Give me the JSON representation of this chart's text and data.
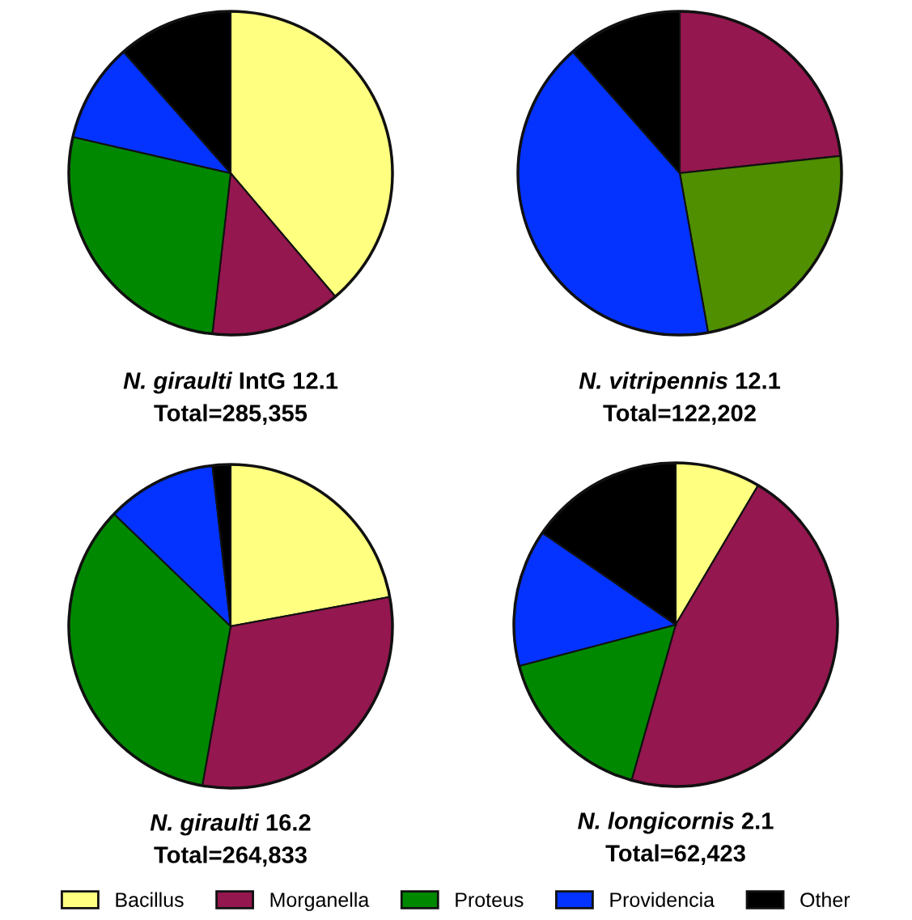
{
  "chart_data": [
    {
      "type": "pie",
      "title": "N. giraulti IntG 12.1",
      "subtitle": "Total=285,355",
      "categories": [
        "Bacillus",
        "Morganella",
        "Proteus",
        "Providencia",
        "Other"
      ],
      "values": [
        38.8,
        13.0,
        26.8,
        9.9,
        11.5
      ],
      "colors": [
        "#ffff80",
        "#94174f",
        "#008800",
        "#0433ff",
        "#000000"
      ],
      "legend": "bottom"
    },
    {
      "type": "pie",
      "title": "N. vitripennis 12.1",
      "subtitle": "Total=122,202",
      "categories": [
        null,
        null,
        null,
        null
      ],
      "values": [
        23.3,
        23.9,
        41.3,
        11.5
      ],
      "colors": [
        "#94174f",
        "#4f8f00",
        "#0433ff",
        "#000000"
      ]
    },
    {
      "type": "pie",
      "title": "N. giraulti 16.2",
      "subtitle": "Total=264,833",
      "categories": [
        null,
        null,
        null,
        null,
        null
      ],
      "values": [
        22.1,
        30.7,
        34.4,
        11.0,
        1.8
      ],
      "colors": [
        "#ffff80",
        "#94174f",
        "#008800",
        "#0433ff",
        "#000000"
      ]
    },
    {
      "type": "pie",
      "title": "N. longicornis 2.1",
      "subtitle": "Total=62,423",
      "categories": [
        null,
        null,
        null,
        null,
        null
      ],
      "values": [
        8.5,
        45.9,
        16.5,
        13.7,
        15.4
      ],
      "colors": [
        "#ffff80",
        "#94174f",
        "#008800",
        "#0433ff",
        "#000000"
      ]
    }
  ]
}
